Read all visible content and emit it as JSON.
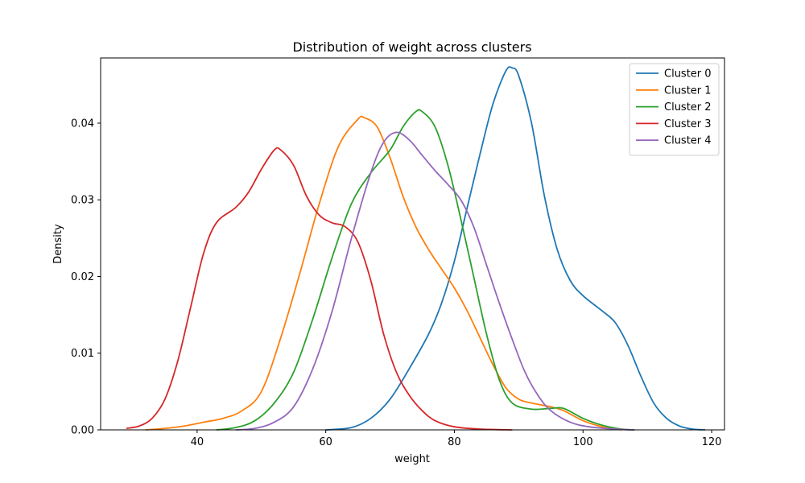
{
  "chart_data": {
    "type": "line",
    "title": "Distribution of weight across clusters",
    "xlabel": "weight",
    "ylabel": "Density",
    "xlim": [
      25,
      122
    ],
    "ylim": [
      0,
      0.0485
    ],
    "x_ticks": [
      40,
      60,
      80,
      100,
      120
    ],
    "x_tick_labels": [
      "40",
      "60",
      "80",
      "100",
      "120"
    ],
    "y_ticks": [
      0,
      0.01,
      0.02,
      0.03,
      0.04
    ],
    "y_tick_labels": [
      "0.00",
      "0.01",
      "0.02",
      "0.03",
      "0.04"
    ],
    "grid": false,
    "legend_position": "top-right",
    "series": [
      {
        "name": "Cluster 0",
        "color": "#1f77b4",
        "points": [
          [
            60,
            0.0
          ],
          [
            64,
            0.0003
          ],
          [
            67,
            0.0015
          ],
          [
            70,
            0.004
          ],
          [
            73,
            0.008
          ],
          [
            76,
            0.0125
          ],
          [
            78,
            0.0165
          ],
          [
            80,
            0.022
          ],
          [
            82,
            0.029
          ],
          [
            84,
            0.036
          ],
          [
            86,
            0.0425
          ],
          [
            88,
            0.0468
          ],
          [
            89,
            0.0472
          ],
          [
            90,
            0.0462
          ],
          [
            92,
            0.04
          ],
          [
            94,
            0.0305
          ],
          [
            96,
            0.0235
          ],
          [
            98,
            0.0195
          ],
          [
            100,
            0.0175
          ],
          [
            103,
            0.0155
          ],
          [
            105,
            0.014
          ],
          [
            107,
            0.011
          ],
          [
            109,
            0.007
          ],
          [
            111,
            0.0035
          ],
          [
            113,
            0.0015
          ],
          [
            115,
            0.0005
          ],
          [
            117,
            0.0001
          ],
          [
            119,
            0.0
          ]
        ]
      },
      {
        "name": "Cluster 1",
        "color": "#ff7f0e",
        "points": [
          [
            32,
            0.0
          ],
          [
            35,
            0.0002
          ],
          [
            38,
            0.0005
          ],
          [
            41,
            0.001
          ],
          [
            44,
            0.0015
          ],
          [
            47,
            0.0025
          ],
          [
            50,
            0.005
          ],
          [
            53,
            0.012
          ],
          [
            56,
            0.0205
          ],
          [
            59,
            0.0295
          ],
          [
            62,
            0.037
          ],
          [
            65,
            0.0405
          ],
          [
            66,
            0.0407
          ],
          [
            68,
            0.0395
          ],
          [
            70,
            0.0355
          ],
          [
            72,
            0.0305
          ],
          [
            74,
            0.0265
          ],
          [
            76,
            0.0235
          ],
          [
            78,
            0.021
          ],
          [
            80,
            0.0185
          ],
          [
            82,
            0.0155
          ],
          [
            84,
            0.012
          ],
          [
            86,
            0.0085
          ],
          [
            88,
            0.0055
          ],
          [
            90,
            0.004
          ],
          [
            92,
            0.0035
          ],
          [
            95,
            0.003
          ],
          [
            97,
            0.0025
          ],
          [
            100,
            0.0012
          ],
          [
            103,
            0.0004
          ],
          [
            106,
            0.0
          ]
        ]
      },
      {
        "name": "Cluster 2",
        "color": "#2ca02c",
        "points": [
          [
            43,
            0.0
          ],
          [
            46,
            0.0003
          ],
          [
            49,
            0.0012
          ],
          [
            52,
            0.0035
          ],
          [
            55,
            0.0075
          ],
          [
            58,
            0.0145
          ],
          [
            61,
            0.0225
          ],
          [
            64,
            0.0295
          ],
          [
            67,
            0.0335
          ],
          [
            70,
            0.0365
          ],
          [
            72,
            0.0395
          ],
          [
            74,
            0.0415
          ],
          [
            75,
            0.0415
          ],
          [
            77,
            0.0395
          ],
          [
            79,
            0.0345
          ],
          [
            81,
            0.0275
          ],
          [
            83,
            0.02
          ],
          [
            85,
            0.0125
          ],
          [
            87,
            0.0065
          ],
          [
            89,
            0.0035
          ],
          [
            92,
            0.0027
          ],
          [
            95,
            0.0028
          ],
          [
            97,
            0.0028
          ],
          [
            100,
            0.0015
          ],
          [
            103,
            0.0006
          ],
          [
            106,
            0.0001
          ],
          [
            108,
            0.0
          ]
        ]
      },
      {
        "name": "Cluster 3",
        "color": "#d62728",
        "points": [
          [
            29,
            0.0002
          ],
          [
            31,
            0.0005
          ],
          [
            33,
            0.0015
          ],
          [
            35,
            0.004
          ],
          [
            37,
            0.009
          ],
          [
            39,
            0.016
          ],
          [
            41,
            0.023
          ],
          [
            43,
            0.027
          ],
          [
            46,
            0.029
          ],
          [
            48,
            0.031
          ],
          [
            50,
            0.034
          ],
          [
            52,
            0.0365
          ],
          [
            53,
            0.0365
          ],
          [
            55,
            0.0345
          ],
          [
            57,
            0.0305
          ],
          [
            59,
            0.028
          ],
          [
            61,
            0.027
          ],
          [
            63,
            0.0265
          ],
          [
            65,
            0.0245
          ],
          [
            67,
            0.0195
          ],
          [
            69,
            0.0125
          ],
          [
            71,
            0.0075
          ],
          [
            73,
            0.0045
          ],
          [
            75,
            0.0025
          ],
          [
            77,
            0.0012
          ],
          [
            80,
            0.0004
          ],
          [
            84,
            0.0001
          ],
          [
            89,
            0.0
          ]
        ]
      },
      {
        "name": "Cluster 4",
        "color": "#9467bd",
        "points": [
          [
            46,
            0.0
          ],
          [
            49,
            0.0002
          ],
          [
            52,
            0.001
          ],
          [
            55,
            0.003
          ],
          [
            58,
            0.008
          ],
          [
            61,
            0.0155
          ],
          [
            64,
            0.025
          ],
          [
            67,
            0.0335
          ],
          [
            69,
            0.0375
          ],
          [
            71,
            0.0388
          ],
          [
            73,
            0.0378
          ],
          [
            75,
            0.0358
          ],
          [
            77,
            0.0338
          ],
          [
            79,
            0.032
          ],
          [
            81,
            0.03
          ],
          [
            83,
            0.0265
          ],
          [
            85,
            0.0215
          ],
          [
            87,
            0.0165
          ],
          [
            89,
            0.0118
          ],
          [
            91,
            0.0075
          ],
          [
            93,
            0.0045
          ],
          [
            95,
            0.0025
          ],
          [
            98,
            0.001
          ],
          [
            101,
            0.0004
          ],
          [
            105,
            0.0001
          ],
          [
            108,
            0.0
          ]
        ]
      }
    ]
  }
}
